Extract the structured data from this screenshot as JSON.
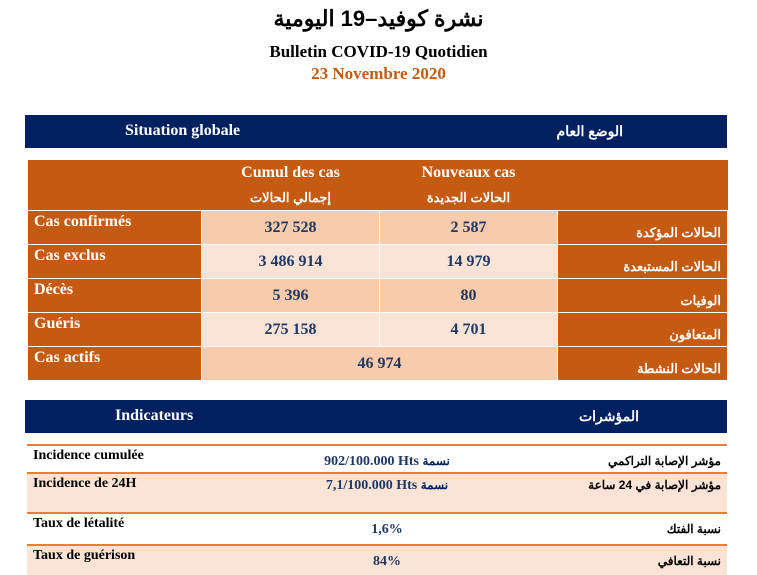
{
  "header": {
    "title_ar": "نشرة كوفيد–19 اليومية",
    "title_fr": "Bulletin COVID-19 Quotidien",
    "date": "23 Novembre 2020"
  },
  "situation": {
    "title_fr": "Situation globale",
    "title_ar": "الوضع العام",
    "col_cumul_fr": "Cumul des cas",
    "col_cumul_ar": "إجمالي الحالات",
    "col_new_fr": "Nouveaux cas",
    "col_new_ar": "الحالات الجديدة",
    "rows": [
      {
        "fr": "Cas confirmés",
        "cumul": "327 528",
        "new": "2 587",
        "ar": "الحالات المؤكدة"
      },
      {
        "fr": "Cas exclus",
        "cumul": "3 486 914",
        "new": "14 979",
        "ar": "الحالات المستبعدة"
      },
      {
        "fr": "Décès",
        "cumul": "5 396",
        "new": "80",
        "ar": "الوفيات"
      },
      {
        "fr": "Guéris",
        "cumul": "275 158",
        "new": "4 701",
        "ar": "المتعافون"
      },
      {
        "fr": "Cas actifs",
        "value": "46 974",
        "ar": "الحالات النشطة"
      }
    ]
  },
  "indicators": {
    "title_fr": "Indicateurs",
    "title_ar": "المؤشرات",
    "rows": [
      {
        "fr": "Incidence cumulée",
        "value": "902/100.000 Hts",
        "value_ar": "نسمة",
        "ar": "مؤشر الإصابة التراكمي"
      },
      {
        "fr": "Incidence de 24H",
        "value": "7,1/100.000 Hts",
        "value_ar": "نسمة",
        "ar": "مؤشر الإصابة في 24 ساعة"
      },
      {
        "fr": "Taux de létalité",
        "value": "1,6%",
        "ar": "نسبة الفتك"
      },
      {
        "fr": "Taux de guérison",
        "value": "84%",
        "ar": "نسبة التعافي"
      }
    ]
  }
}
